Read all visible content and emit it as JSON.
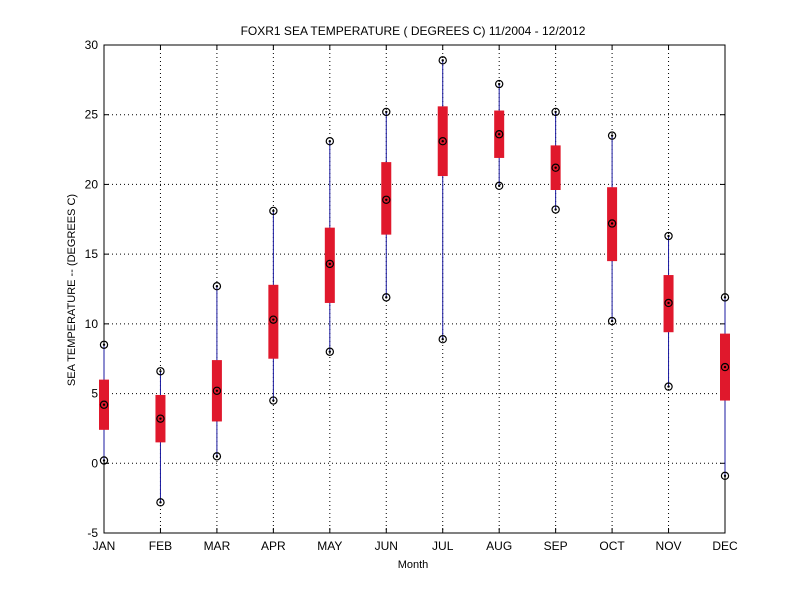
{
  "chart_data": {
    "type": "boxplot",
    "title": "FOXR1  SEA TEMPERATURE ( DEGREES C) 11/2004 - 12/2012",
    "xlabel": "Month",
    "ylabel": "SEA TEMPERATURE -- (DEGREES C)",
    "ylim": [
      -5,
      30
    ],
    "yticks": [
      -5,
      0,
      5,
      10,
      15,
      20,
      25,
      30
    ],
    "grid": true,
    "categories": [
      "JAN",
      "FEB",
      "MAR",
      "APR",
      "MAY",
      "JUN",
      "JUL",
      "AUG",
      "SEP",
      "OCT",
      "NOV",
      "DEC"
    ],
    "series": [
      {
        "min": [
          0.2,
          -2.8,
          0.5,
          4.5,
          8.0,
          11.9,
          8.9,
          19.9,
          18.2,
          10.2,
          5.5,
          -0.9
        ],
        "q1": [
          2.4,
          1.5,
          3.0,
          7.5,
          11.5,
          16.4,
          20.6,
          21.9,
          19.6,
          14.5,
          9.4,
          4.5
        ],
        "median": [
          4.2,
          3.2,
          5.2,
          10.3,
          14.3,
          18.9,
          23.1,
          23.6,
          21.2,
          17.2,
          11.5,
          6.9
        ],
        "q3": [
          6.0,
          4.9,
          7.4,
          12.8,
          16.9,
          21.6,
          25.6,
          25.3,
          22.8,
          19.8,
          13.5,
          9.3
        ],
        "max": [
          8.5,
          6.6,
          12.7,
          18.1,
          23.1,
          25.2,
          28.9,
          27.2,
          25.2,
          23.5,
          16.3,
          11.9
        ]
      }
    ],
    "colors": {
      "box": "#e0182c",
      "whisker": "#1a1aa0",
      "marker": "#000000",
      "grid": "#000000",
      "axis": "#000000"
    }
  }
}
